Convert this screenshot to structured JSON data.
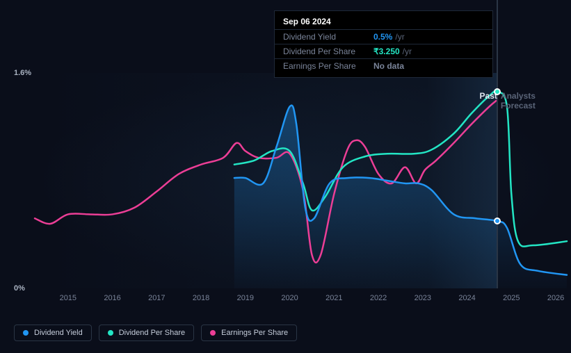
{
  "chart": {
    "type": "line",
    "background_color": "#0a0e1a",
    "grid_color": "#1a2030",
    "x_years": [
      2015,
      2016,
      2017,
      2018,
      2019,
      2020,
      2021,
      2022,
      2023,
      2024,
      2025,
      2026
    ],
    "x_start": 2014.25,
    "x_end": 2026.25,
    "ylim": [
      0,
      1.6
    ],
    "yticks": [
      {
        "v": 0.0,
        "label": "0%"
      },
      {
        "v": 1.6,
        "label": "1.6%"
      }
    ],
    "vline_x": 2024.68,
    "past_label": "Past",
    "forecast_label": "Analysts Forecast",
    "line_width": 2.5,
    "series": {
      "dividend_yield": {
        "label": "Dividend Yield",
        "color": "#2196f3",
        "area_start_x": 2018.75,
        "points": [
          [
            2018.75,
            0.82
          ],
          [
            2019.0,
            0.82
          ],
          [
            2019.4,
            0.78
          ],
          [
            2019.7,
            1.05
          ],
          [
            2020.0,
            1.35
          ],
          [
            2020.15,
            1.22
          ],
          [
            2020.35,
            0.6
          ],
          [
            2020.55,
            0.52
          ],
          [
            2020.9,
            0.78
          ],
          [
            2021.3,
            0.82
          ],
          [
            2021.8,
            0.82
          ],
          [
            2022.2,
            0.8
          ],
          [
            2022.6,
            0.78
          ],
          [
            2022.9,
            0.78
          ],
          [
            2023.2,
            0.73
          ],
          [
            2023.7,
            0.55
          ],
          [
            2024.2,
            0.52
          ],
          [
            2024.68,
            0.5
          ],
          [
            2024.9,
            0.45
          ],
          [
            2025.2,
            0.18
          ],
          [
            2025.6,
            0.13
          ],
          [
            2026.25,
            0.1
          ]
        ]
      },
      "dividend_per_share": {
        "label": "Dividend Per Share",
        "color": "#23e5c4",
        "points": [
          [
            2018.75,
            0.92
          ],
          [
            2019.2,
            0.95
          ],
          [
            2019.6,
            1.02
          ],
          [
            2020.0,
            1.02
          ],
          [
            2020.3,
            0.78
          ],
          [
            2020.5,
            0.58
          ],
          [
            2020.8,
            0.68
          ],
          [
            2021.2,
            0.9
          ],
          [
            2021.7,
            0.98
          ],
          [
            2022.2,
            1.0
          ],
          [
            2022.8,
            1.0
          ],
          [
            2023.2,
            1.03
          ],
          [
            2023.7,
            1.15
          ],
          [
            2024.1,
            1.3
          ],
          [
            2024.5,
            1.43
          ],
          [
            2024.68,
            1.46
          ],
          [
            2024.9,
            1.35
          ],
          [
            2025.0,
            0.7
          ],
          [
            2025.15,
            0.35
          ],
          [
            2025.5,
            0.32
          ],
          [
            2026.25,
            0.35
          ]
        ]
      },
      "earnings_per_share": {
        "label": "Earnings Per Share",
        "color": "#ec3e96",
        "points": [
          [
            2014.25,
            0.52
          ],
          [
            2014.6,
            0.48
          ],
          [
            2015.0,
            0.55
          ],
          [
            2015.5,
            0.55
          ],
          [
            2016.0,
            0.55
          ],
          [
            2016.5,
            0.6
          ],
          [
            2017.0,
            0.72
          ],
          [
            2017.5,
            0.85
          ],
          [
            2018.0,
            0.92
          ],
          [
            2018.5,
            0.97
          ],
          [
            2018.8,
            1.08
          ],
          [
            2019.0,
            1.02
          ],
          [
            2019.3,
            0.97
          ],
          [
            2019.7,
            0.97
          ],
          [
            2020.0,
            1.0
          ],
          [
            2020.3,
            0.73
          ],
          [
            2020.5,
            0.25
          ],
          [
            2020.7,
            0.25
          ],
          [
            2021.0,
            0.7
          ],
          [
            2021.3,
            1.03
          ],
          [
            2021.5,
            1.1
          ],
          [
            2021.7,
            1.05
          ],
          [
            2022.0,
            0.85
          ],
          [
            2022.3,
            0.78
          ],
          [
            2022.6,
            0.9
          ],
          [
            2022.85,
            0.78
          ],
          [
            2023.05,
            0.88
          ],
          [
            2023.3,
            0.95
          ],
          [
            2023.7,
            1.08
          ],
          [
            2024.1,
            1.22
          ],
          [
            2024.5,
            1.35
          ],
          [
            2024.68,
            1.4
          ]
        ]
      }
    },
    "markers": [
      {
        "series": "dividend_yield",
        "x": 2024.68,
        "y": 0.5,
        "fill": "#2196f3"
      },
      {
        "series": "dividend_per_share",
        "x": 2024.68,
        "y": 1.46,
        "fill": "#23e5c4"
      }
    ]
  },
  "tooltip": {
    "date": "Sep 06 2024",
    "rows": [
      {
        "label": "Dividend Yield",
        "value": "0.5%",
        "unit": "/yr",
        "color": "#2196f3"
      },
      {
        "label": "Dividend Per Share",
        "value": "₹3.250",
        "unit": "/yr",
        "color": "#23e5c4"
      },
      {
        "label": "Earnings Per Share",
        "value": "No data",
        "unit": "",
        "color": "#7a8499"
      }
    ]
  },
  "legend": {
    "items": [
      {
        "label": "Dividend Yield",
        "color": "#2196f3"
      },
      {
        "label": "Dividend Per Share",
        "color": "#23e5c4"
      },
      {
        "label": "Earnings Per Share",
        "color": "#ec3e96"
      }
    ]
  }
}
